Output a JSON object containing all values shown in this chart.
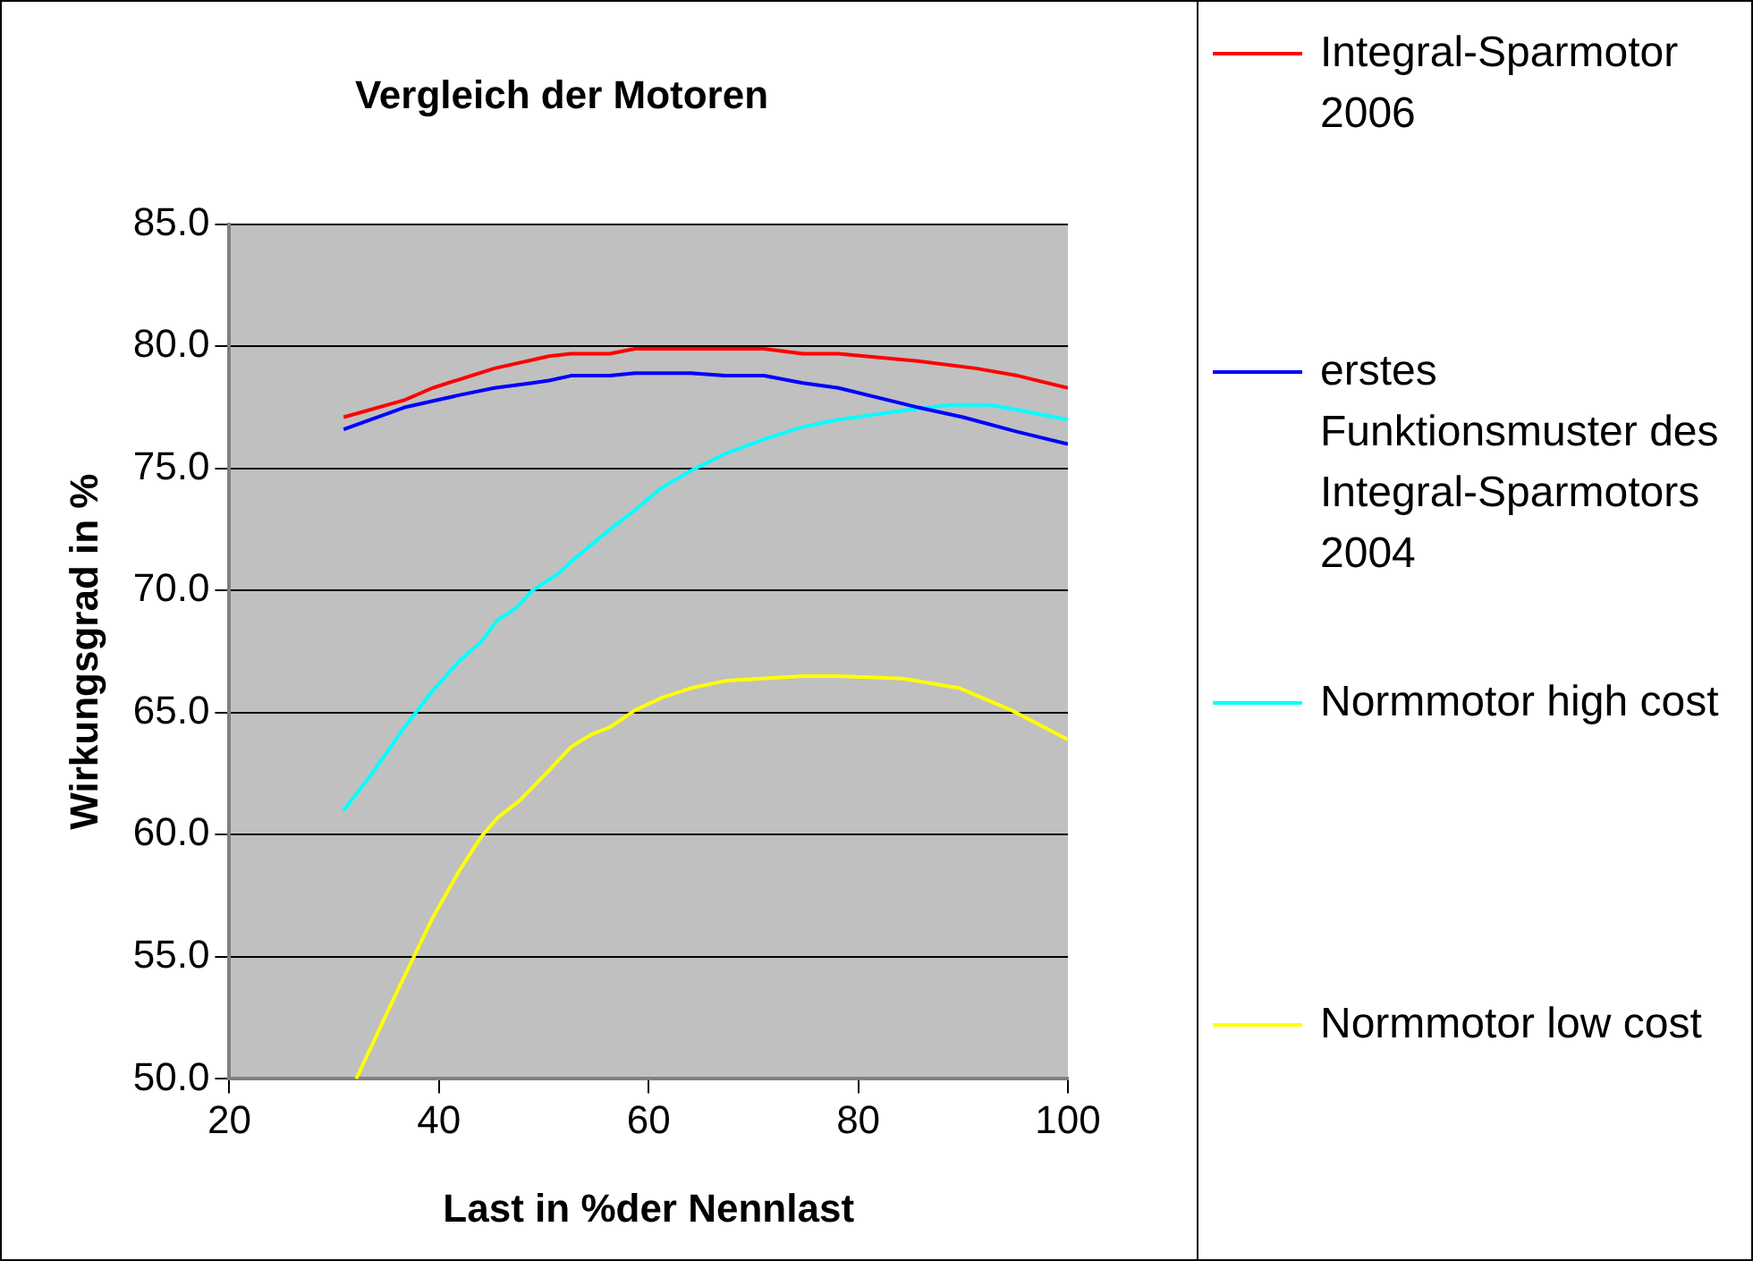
{
  "chart_data": {
    "type": "line",
    "title": "Vergleich der Motoren",
    "xlabel": "Last in %der Nennlast",
    "ylabel": "Wirkungsgrad in %",
    "xlim": [
      20,
      100
    ],
    "xticks": [
      20,
      40,
      60,
      80,
      100
    ],
    "ylim": [
      50,
      85
    ],
    "yticks": [
      {
        "value": 50,
        "label": "50.0"
      },
      {
        "value": 55,
        "label": "55.0"
      },
      {
        "value": 60,
        "label": "60.0"
      },
      {
        "value": 65,
        "label": "65.0"
      },
      {
        "value": 70,
        "label": "70.0"
      },
      {
        "value": 75,
        "label": "75.0"
      },
      {
        "value": 80,
        "label": "80.0"
      },
      {
        "value": 85,
        "label": "85.0"
      }
    ],
    "grid": "y",
    "legend": "right",
    "marker": "none",
    "line_style": "solid",
    "series": [
      {
        "name": "Integral-Sparmotor 2006",
        "color": "#ff0000",
        "x": [
          30.9,
          36.7,
          39.4,
          45.3,
          50.5,
          52.6,
          56.3,
          58.7,
          71.0,
          74.7,
          78.1,
          85.7,
          91.2,
          95.2,
          100
        ],
        "values": [
          77.1,
          77.8,
          78.3,
          79.1,
          79.6,
          79.7,
          79.7,
          79.9,
          79.9,
          79.7,
          79.7,
          79.4,
          79.1,
          78.8,
          78.3
        ]
      },
      {
        "name": "erstes Funktionsmuster des Integral-Sparmotors 2004",
        "color": "#0000ff",
        "x": [
          30.9,
          36.7,
          41.9,
          45.3,
          48.9,
          50.5,
          52.6,
          56.3,
          58.7,
          64.0,
          67.3,
          71.0,
          74.7,
          78.1,
          85.7,
          90.0,
          95.2,
          100
        ],
        "values": [
          76.6,
          77.5,
          78.0,
          78.3,
          78.5,
          78.6,
          78.8,
          78.8,
          78.9,
          78.9,
          78.8,
          78.8,
          78.5,
          78.3,
          77.5,
          77.1,
          76.5,
          76.0
        ]
      },
      {
        "name": "Normmotor high cost",
        "color": "#00ffff",
        "x": [
          30.9,
          33.6,
          36.7,
          39.4,
          41.9,
          44.0,
          45.6,
          47.4,
          48.9,
          51.4,
          52.9,
          56.3,
          58.7,
          61.2,
          64.0,
          67.3,
          71.0,
          74.7,
          78.1,
          84.8,
          88.8,
          92.5,
          95.2,
          100
        ],
        "values": [
          61.0,
          62.5,
          64.4,
          65.9,
          67.1,
          67.9,
          68.8,
          69.3,
          70.0,
          70.7,
          71.3,
          72.5,
          73.3,
          74.2,
          74.9,
          75.6,
          76.2,
          76.7,
          77.0,
          77.4,
          77.6,
          77.6,
          77.4,
          77.0
        ]
      },
      {
        "name": "Normmotor low cost",
        "color": "#ffff00",
        "x": [
          32.1,
          35.8,
          39.4,
          41.9,
          44.0,
          45.6,
          47.7,
          50.2,
          52.6,
          54.5,
          56.3,
          58.7,
          61.2,
          64.0,
          67.3,
          74.7,
          78.1,
          84.2,
          89.7,
          94.6,
          100
        ],
        "values": [
          50.0,
          53.4,
          56.6,
          58.5,
          59.9,
          60.7,
          61.4,
          62.5,
          63.6,
          64.1,
          64.4,
          65.1,
          65.6,
          66.0,
          66.3,
          66.5,
          66.5,
          66.4,
          66.0,
          65.1,
          63.9
        ]
      }
    ]
  }
}
